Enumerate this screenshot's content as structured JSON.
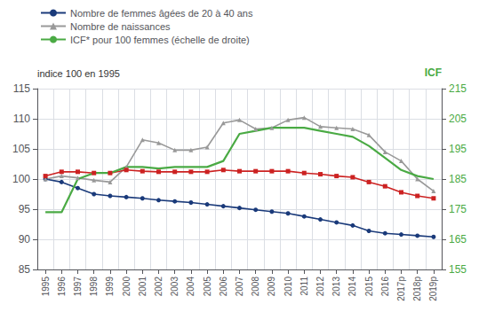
{
  "chart_data": {
    "type": "line",
    "categories": [
      "1995",
      "1996",
      "1997",
      "1998",
      "1999",
      "2000",
      "2001",
      "2002",
      "2003",
      "2004",
      "2005",
      "2006",
      "2007",
      "2008",
      "2009",
      "2010",
      "2011",
      "2012",
      "2013",
      "2014",
      "2015",
      "2016",
      "2017p",
      "2018p",
      "2019p"
    ],
    "series": [
      {
        "name": "Nombre de femmes âgées de 20 à 40 ans",
        "color": "#1a3a7a",
        "marker": "circle",
        "values": [
          100,
          99.5,
          98.5,
          97.5,
          97.2,
          97.0,
          96.8,
          96.5,
          96.3,
          96.1,
          95.8,
          95.5,
          95.2,
          94.9,
          94.6,
          94.3,
          93.8,
          93.3,
          92.8,
          92.3,
          91.4,
          91.0,
          90.8,
          90.6,
          90.4
        ]
      },
      {
        "name": "Nombre de naissances",
        "color": "#999999",
        "marker": "triangle",
        "values": [
          100,
          100.5,
          100.2,
          99.8,
          99.5,
          102.0,
          106.5,
          106.0,
          104.8,
          104.8,
          105.3,
          109.3,
          109.8,
          108.3,
          108.5,
          109.8,
          110.2,
          108.7,
          108.5,
          108.3,
          107.3,
          104.5,
          103.0,
          100.0,
          98.0
        ]
      },
      {
        "color": "#cc2222",
        "marker": "square",
        "values": [
          100.5,
          101.2,
          101.2,
          101.0,
          101.0,
          101.5,
          101.3,
          101.2,
          101.2,
          101.2,
          101.2,
          101.5,
          101.3,
          101.3,
          101.3,
          101.3,
          101.0,
          100.8,
          100.5,
          100.3,
          99.5,
          98.8,
          97.8,
          97.2,
          96.8
        ]
      },
      {
        "name": "ICF* pour 100 femmes (échelle de droite)",
        "color": "#4aaa44",
        "marker": "none",
        "axis": "y2",
        "values": [
          174,
          174,
          185,
          187,
          187,
          189,
          189,
          188.5,
          189,
          189,
          189,
          191,
          200,
          201,
          202,
          202,
          202,
          201,
          200,
          199,
          196,
          192,
          188,
          186,
          185
        ]
      }
    ],
    "ylabel": "indice 100 en 1995",
    "y2label": "ICF",
    "ylim": [
      85,
      115
    ],
    "yticks": [
      85,
      90,
      95,
      100,
      105,
      110,
      115
    ],
    "y2lim": [
      155,
      215
    ],
    "y2ticks": [
      155,
      165,
      175,
      185,
      195,
      205,
      215
    ],
    "grid": true,
    "legend": "top left"
  }
}
